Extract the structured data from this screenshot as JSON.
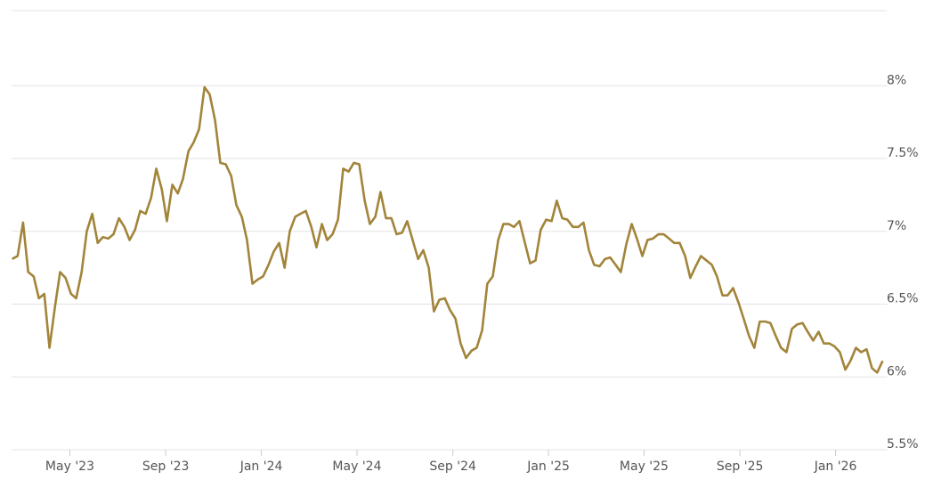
{
  "chart_data": {
    "type": "line",
    "x": [
      2023.132,
      2023.151,
      2023.17,
      2023.188,
      2023.207,
      2023.225,
      2023.244,
      2023.262,
      2023.281,
      2023.299,
      2023.318,
      2023.337,
      2023.355,
      2023.374,
      2023.392,
      2023.411,
      2023.43,
      2023.448,
      2023.467,
      2023.485,
      2023.504,
      2023.523,
      2023.541,
      2023.56,
      2023.578,
      2023.597,
      2023.616,
      2023.634,
      2023.653,
      2023.671,
      2023.69,
      2023.709,
      2023.727,
      2023.746,
      2023.764,
      2023.783,
      2023.802,
      2023.82,
      2023.839,
      2023.857,
      2023.876,
      2023.895,
      2023.913,
      2023.932,
      2023.95,
      2023.969,
      2023.988,
      2024.006,
      2024.025,
      2024.043,
      2024.062,
      2024.081,
      2024.099,
      2024.118,
      2024.136,
      2024.155,
      2024.174,
      2024.192,
      2024.211,
      2024.229,
      2024.248,
      2024.267,
      2024.285,
      2024.304,
      2024.322,
      2024.341,
      2024.36,
      2024.378,
      2024.397,
      2024.415,
      2024.434,
      2024.453,
      2024.471,
      2024.49,
      2024.508,
      2024.527,
      2024.546,
      2024.564,
      2024.583,
      2024.601,
      2024.62,
      2024.639,
      2024.657,
      2024.676,
      2024.694,
      2024.713,
      2024.732,
      2024.75,
      2024.769,
      2024.787,
      2024.806,
      2024.825,
      2024.843,
      2024.862,
      2024.88,
      2024.899,
      2024.918,
      2024.936,
      2024.955,
      2024.973,
      2024.992,
      2025.011,
      2025.029,
      2025.048,
      2025.066,
      2025.085,
      2025.104,
      2025.122,
      2025.141,
      2025.159,
      2025.178,
      2025.197,
      2025.215,
      2025.234,
      2025.252,
      2025.271,
      2025.29,
      2025.308,
      2025.327,
      2025.345,
      2025.364,
      2025.383,
      2025.401,
      2025.42,
      2025.438,
      2025.457,
      2025.476,
      2025.494,
      2025.513,
      2025.531,
      2025.55,
      2025.569,
      2025.587,
      2025.606,
      2025.624,
      2025.643,
      2025.662,
      2025.68,
      2025.699,
      2025.717,
      2025.736,
      2025.755,
      2025.773,
      2025.792,
      2025.81,
      2025.829,
      2025.848,
      2025.866,
      2025.885,
      2025.903,
      2025.922,
      2025.941,
      2025.959,
      2025.978,
      2025.996,
      2026.015,
      2026.034,
      2026.052,
      2026.071,
      2026.089,
      2026.108,
      2026.127,
      2026.145,
      2026.164
    ],
    "series": [
      {
        "color": "#a2843a",
        "values": [
          6.81,
          6.83,
          7.06,
          6.72,
          6.69,
          6.54,
          6.57,
          6.2,
          6.48,
          6.72,
          6.68,
          6.57,
          6.54,
          6.72,
          7.0,
          7.12,
          6.92,
          6.96,
          6.95,
          6.98,
          7.09,
          7.03,
          6.94,
          7.01,
          7.14,
          7.12,
          7.23,
          7.43,
          7.29,
          7.07,
          7.32,
          7.26,
          7.36,
          7.55,
          7.61,
          7.7,
          7.99,
          7.94,
          7.76,
          7.47,
          7.46,
          7.38,
          7.18,
          7.1,
          6.94,
          6.64,
          6.67,
          6.69,
          6.77,
          6.86,
          6.92,
          6.75,
          7.0,
          7.1,
          7.12,
          7.14,
          7.03,
          6.89,
          7.05,
          6.94,
          6.98,
          7.08,
          7.43,
          7.41,
          7.47,
          7.46,
          7.21,
          7.05,
          7.1,
          7.27,
          7.09,
          7.09,
          6.98,
          6.99,
          7.07,
          6.94,
          6.81,
          6.87,
          6.75,
          6.45,
          6.53,
          6.54,
          6.46,
          6.4,
          6.23,
          6.13,
          6.18,
          6.2,
          6.32,
          6.64,
          6.69,
          6.94,
          7.05,
          7.05,
          7.03,
          7.07,
          6.92,
          6.78,
          6.8,
          7.01,
          7.08,
          7.07,
          7.21,
          7.09,
          7.08,
          7.03,
          7.03,
          7.06,
          6.87,
          6.77,
          6.76,
          6.81,
          6.82,
          6.77,
          6.72,
          6.91,
          7.05,
          6.95,
          6.83,
          6.94,
          6.95,
          6.98,
          6.98,
          6.95,
          6.92,
          6.92,
          6.83,
          6.68,
          6.76,
          6.83,
          6.8,
          6.77,
          6.69,
          6.56,
          6.56,
          6.61,
          6.51,
          6.4,
          6.28,
          6.2,
          6.38,
          6.38,
          6.37,
          6.28,
          6.2,
          6.17,
          6.33,
          6.36,
          6.37,
          6.31,
          6.25,
          6.31,
          6.23,
          6.23,
          6.21,
          6.17,
          6.05,
          6.11,
          6.2,
          6.17,
          6.19,
          6.06,
          6.03,
          6.11
        ]
      }
    ],
    "xlim": [
      2023.13,
      2026.18
    ],
    "xticks": [
      {
        "value": 2023.333,
        "label": "May '23"
      },
      {
        "value": 2023.667,
        "label": "Sep '23"
      },
      {
        "value": 2024.0,
        "label": "Jan '24"
      },
      {
        "value": 2024.333,
        "label": "May '24"
      },
      {
        "value": 2024.667,
        "label": "Sep '24"
      },
      {
        "value": 2025.0,
        "label": "Jan '25"
      },
      {
        "value": 2025.333,
        "label": "May '25"
      },
      {
        "value": 2025.667,
        "label": "Sep '25"
      },
      {
        "value": 2026.0,
        "label": "Jan '26"
      }
    ],
    "ylim": [
      5.5,
      8.5
    ],
    "yticks": [
      {
        "value": 5.5,
        "label": "5.5%"
      },
      {
        "value": 6,
        "label": "6%"
      },
      {
        "value": 6.5,
        "label": "6.5%"
      },
      {
        "value": 7,
        "label": "7%"
      },
      {
        "value": 7.5,
        "label": "7.5%"
      },
      {
        "value": 8,
        "label": "8%"
      }
    ],
    "grid": true
  }
}
